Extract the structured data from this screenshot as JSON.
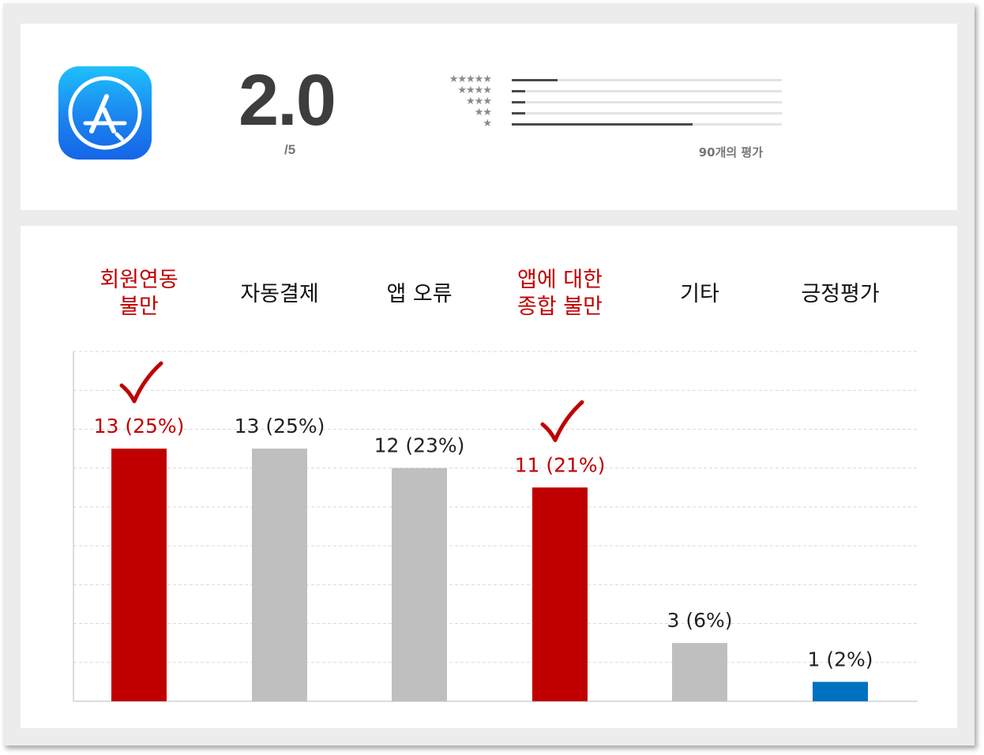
{
  "summary": {
    "rating": "2.0",
    "rating_scale": "/5",
    "rating_count_label": "90개의 평가",
    "star_distribution": [
      {
        "stars": "★★★★★",
        "fraction": 0.17
      },
      {
        "stars": "★★★★",
        "fraction": 0.05
      },
      {
        "stars": "★★★",
        "fraction": 0.05
      },
      {
        "stars": "★★",
        "fraction": 0.05
      },
      {
        "stars": "★",
        "fraction": 0.67
      }
    ],
    "icon": "app-store-icon"
  },
  "colors": {
    "highlight": "#c00000",
    "neutral": "#bfbfbf",
    "positive": "#0070c0",
    "grid": "#d9d9d9"
  },
  "chart_data": {
    "type": "bar",
    "categories": [
      "회원연동\n불만",
      "자동결제",
      "앱 오류",
      "앱에 대한\n종합 불만",
      "기타",
      "긍정평가"
    ],
    "values": [
      13,
      13,
      12,
      11,
      3,
      1
    ],
    "value_labels": [
      "13 (25%)",
      "13 (25%)",
      "12 (23%)",
      "11 (21%)",
      "3 (6%)",
      "1 (2%)"
    ],
    "highlighted": [
      true,
      false,
      false,
      true,
      false,
      false
    ],
    "checkmarks": [
      true,
      false,
      false,
      true,
      false,
      false
    ],
    "bar_colors": [
      "#c00000",
      "#bfbfbf",
      "#bfbfbf",
      "#c00000",
      "#bfbfbf",
      "#0070c0"
    ],
    "ylim": [
      0,
      18
    ],
    "grid": true,
    "gridlines": 9
  }
}
